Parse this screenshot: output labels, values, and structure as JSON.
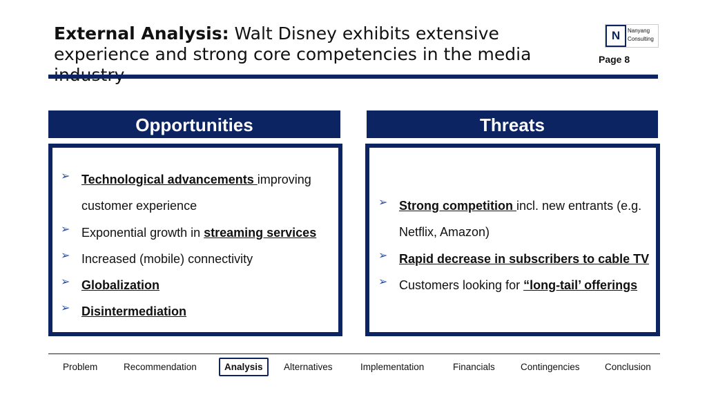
{
  "header": {
    "title": {
      "lead": "External Analysis:",
      "text": "Walt Disney exhibits extensive experience and strong core competencies in the media industry"
    },
    "logo": {
      "letter": "N",
      "name_lines": [
        "Nanyang",
        "Consulting"
      ]
    },
    "page": "Page 8"
  },
  "panels": [
    {
      "title": "Opportunities",
      "bullets": [
        [
          {
            "text": "Technological advancements ",
            "strong": true
          },
          {
            "text": "improving customer experience",
            "strong": false
          }
        ],
        [
          {
            "text": "Exponential growth in ",
            "strong": false
          },
          {
            "text": "streaming services",
            "strong": true
          }
        ],
        [
          {
            "text": "Increased (mobile) connectivity",
            "strong": false
          }
        ],
        [
          {
            "text": "Globalization",
            "strong": true
          }
        ],
        [
          {
            "text": "Disintermediation",
            "strong": true
          }
        ]
      ]
    },
    {
      "title": "Threats",
      "bullets": [
        [
          {
            "text": "Strong competition ",
            "strong": true
          },
          {
            "text": "incl. new entrants (e.g. Netflix, Amazon)",
            "strong": false
          }
        ],
        [
          {
            "text": "Rapid decrease in subscribers to cable TV",
            "strong": true
          }
        ],
        [
          {
            "text": "Customers looking for ",
            "strong": false
          },
          {
            "text": "“long-tail’ offerings",
            "strong": true
          }
        ]
      ]
    }
  ],
  "nav": {
    "items": [
      "Problem",
      "Recommendation",
      "Analysis",
      "Alternatives",
      "Implementation",
      "Financials",
      "Contingencies",
      "Conclusion"
    ],
    "active_index": 2
  }
}
